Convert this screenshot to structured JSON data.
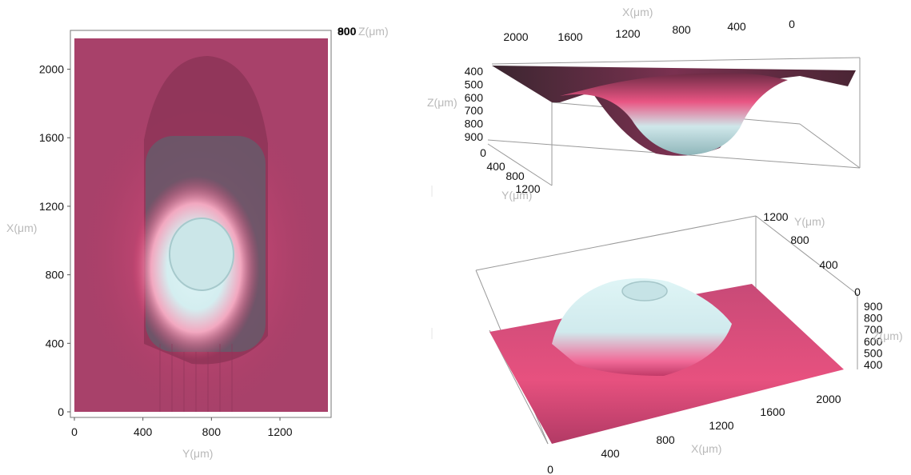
{
  "colors": {
    "surface_low": "#a63a62",
    "surface_mid": "#ee4f84",
    "surface_high": "#dcf2f3",
    "axis": "#111111",
    "axis_label": "#b9b9b9",
    "box_edge": "#9a9a9a"
  },
  "chart_data": [
    {
      "id": "top-view",
      "type": "heatmap",
      "title": "",
      "xlabel": "Y(μm)",
      "ylabel": "X(μm)",
      "zlabel": "Z(μm)",
      "x_ticks": [
        "0",
        "400",
        "800",
        "1200"
      ],
      "y_ticks": [
        "0",
        "400",
        "800",
        "1200",
        "1600",
        "2000"
      ],
      "z_ticks_overlap": [
        "800",
        "900"
      ],
      "xlim": [
        0,
        1480
      ],
      "ylim": [
        0,
        2180
      ],
      "feature": {
        "center_y": 760,
        "center_x": 1000,
        "width_y": 650,
        "length_x": 1700,
        "peak_z": 900,
        "base_z": 400
      }
    },
    {
      "id": "3d-view-top",
      "type": "area",
      "title": "",
      "xlabel": "X(μm)",
      "ylabel": "Y(μm)",
      "zlabel": "Z(μm)",
      "x_ticks": [
        "2000",
        "1600",
        "1200",
        "800",
        "400",
        "0"
      ],
      "y_ticks": [
        "0",
        "400",
        "800",
        "1200"
      ],
      "z_ticks": [
        "400",
        "500",
        "600",
        "700",
        "800",
        "900"
      ],
      "zlim": [
        400,
        900
      ],
      "z_reversed": true
    },
    {
      "id": "3d-view-bottom",
      "type": "area",
      "title": "",
      "xlabel": "X(μm)",
      "ylabel": "Y(μm)",
      "zlabel": "Z(μm)",
      "x_ticks": [
        "0",
        "400",
        "800",
        "1200",
        "1600",
        "2000"
      ],
      "y_ticks": [
        "1200",
        "800",
        "400",
        "0"
      ],
      "z_ticks": [
        "900",
        "800",
        "700",
        "600",
        "500",
        "400"
      ],
      "zlim": [
        400,
        900
      ]
    }
  ]
}
